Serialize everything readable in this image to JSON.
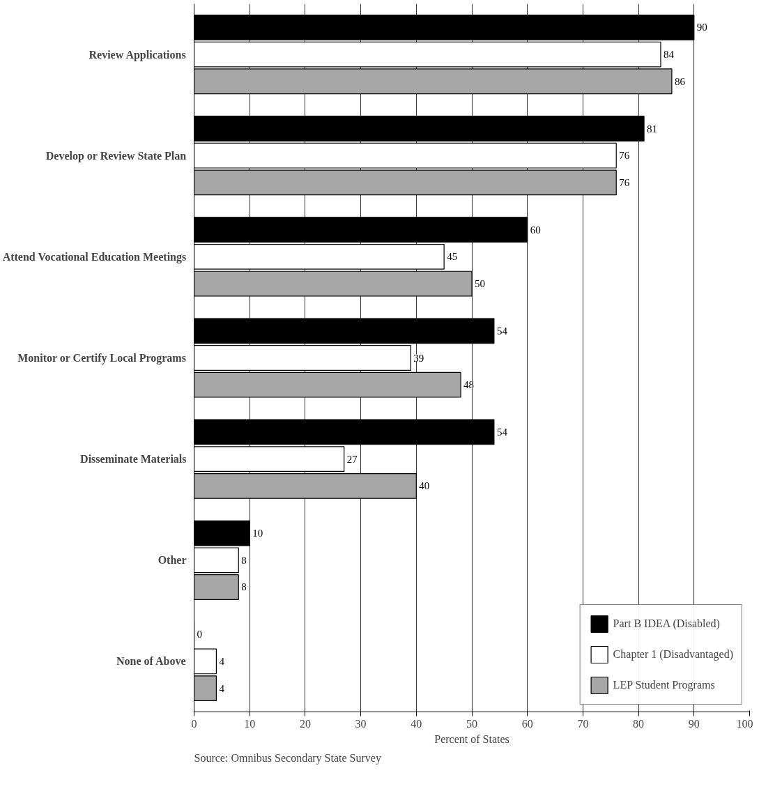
{
  "chart_data": {
    "type": "bar",
    "orientation": "horizontal",
    "categories": [
      "Review Applications",
      "Develop or Review State Plan",
      "Attend Vocational Education Meetings",
      "Monitor or Certify Local Programs",
      "Disseminate Materials",
      "Other",
      "None of Above"
    ],
    "series": [
      {
        "name": "Part B IDEA (Disabled)",
        "color": "#000000",
        "values": [
          90,
          81,
          60,
          54,
          54,
          10,
          0
        ]
      },
      {
        "name": "Chapter 1 (Disadvantaged)",
        "color": "#ffffff",
        "values": [
          84,
          76,
          45,
          39,
          27,
          8,
          4
        ]
      },
      {
        "name": "LEP Student Programs",
        "color": "#a6a6a6",
        "values": [
          86,
          76,
          50,
          48,
          40,
          8,
          4
        ]
      }
    ],
    "xlim": [
      0,
      100
    ],
    "xticks": [
      0,
      10,
      20,
      30,
      40,
      50,
      60,
      70,
      80,
      90,
      100
    ],
    "xlabel": "Percent of States",
    "grid": "x",
    "legend": "bottom right",
    "data_labels": true,
    "annotations": [
      "Source: Omnibus Secondary State Survey"
    ]
  }
}
